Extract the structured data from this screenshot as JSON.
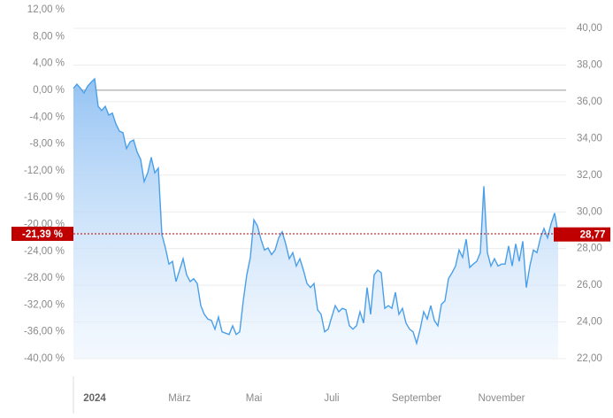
{
  "chart_data": {
    "type": "area",
    "series": [
      {
        "color": "#4a9fe8",
        "axis": "y",
        "values": [
          0.3,
          0.9,
          0.3,
          -0.4,
          0.6,
          1.2,
          1.7,
          -2.4,
          -3.0,
          -2.4,
          -3.7,
          -3.4,
          -5.0,
          -6.1,
          -6.3,
          -8.7,
          -7.7,
          -7.4,
          -9.2,
          -10.3,
          -13.6,
          -12.3,
          -10.0,
          -12.3,
          -11.6,
          -21.5,
          -23.5,
          -25.9,
          -25.5,
          -28.5,
          -26.8,
          -25.1,
          -27.5,
          -28.5,
          -28.1,
          -28.8,
          -32.1,
          -33.4,
          -34.1,
          -34.3,
          -35.6,
          -33.8,
          -36.0,
          -36.2,
          -36.4,
          -35.1,
          -36.4,
          -36.0,
          -31.4,
          -27.5,
          -24.9,
          -19.3,
          -20.2,
          -22.2,
          -23.8,
          -23.5,
          -24.5,
          -23.8,
          -22.0,
          -21.1,
          -22.9,
          -25.1,
          -24.2,
          -26.2,
          -25.1,
          -26.8,
          -28.8,
          -29.4,
          -28.8,
          -32.7,
          -33.4,
          -36.0,
          -35.6,
          -33.8,
          -32.1,
          -33.0,
          -32.5,
          -32.7,
          -35.1,
          -35.6,
          -35.1,
          -33.0,
          -34.7,
          -29.4,
          -33.4,
          -27.5,
          -26.8,
          -27.2,
          -32.5,
          -32.1,
          -32.5,
          -30.1,
          -33.4,
          -32.5,
          -34.7,
          -35.6,
          -36.0,
          -37.7,
          -35.6,
          -33.0,
          -34.1,
          -32.1,
          -34.3,
          -35.1,
          -31.9,
          -31.4,
          -28.1,
          -27.2,
          -26.2,
          -23.8,
          -24.9,
          -22.2,
          -26.4,
          -25.9,
          -25.5,
          -24.2,
          -14.3,
          -24.2,
          -26.2,
          -25.1,
          -26.2,
          -25.9,
          -25.9,
          -23.2,
          -26.2,
          -22.9,
          -25.5,
          -22.5,
          -29.4,
          -26.2,
          -23.8,
          -24.2,
          -22.0,
          -20.6,
          -22.0,
          -19.9,
          -18.3,
          -21.4
        ]
      }
    ],
    "xlim": [
      0,
      136
    ],
    "xticks": [
      {
        "value": 6,
        "label": "2024"
      },
      {
        "value": 30,
        "label": "März"
      },
      {
        "value": 51,
        "label": "Mai"
      },
      {
        "value": 73,
        "label": "Juli"
      },
      {
        "value": 97,
        "label": "September"
      },
      {
        "value": 121,
        "label": "November"
      }
    ],
    "ylim": [
      -40,
      12
    ],
    "yticks": [
      {
        "value": 12,
        "label": "12,00 %"
      },
      {
        "value": 8,
        "label": "8,00 %"
      },
      {
        "value": 4,
        "label": "4,00 %"
      },
      {
        "value": 0,
        "label": "0,00 %"
      },
      {
        "value": -4,
        "label": "-4,00 %"
      },
      {
        "value": -8,
        "label": "-8,00 %"
      },
      {
        "value": -12,
        "label": "-12,00 %"
      },
      {
        "value": -16,
        "label": "-16,00 %"
      },
      {
        "value": -20,
        "label": "-20,00 %"
      },
      {
        "value": -24,
        "label": "-24,00 %"
      },
      {
        "value": -28,
        "label": "-28,00 %"
      },
      {
        "value": -32,
        "label": "-32,00 %"
      },
      {
        "value": -36,
        "label": "-36,00 %"
      },
      {
        "value": -40,
        "label": "-40,00 %"
      }
    ],
    "y2lim": [
      22,
      40
    ],
    "y2ticks": [
      {
        "value": 40,
        "label": "40,00"
      },
      {
        "value": 38,
        "label": "38,00"
      },
      {
        "value": 36,
        "label": "36,00"
      },
      {
        "value": 34,
        "label": "34,00"
      },
      {
        "value": 32,
        "label": "32,00"
      },
      {
        "value": 30,
        "label": "30,00"
      },
      {
        "value": 28,
        "label": "28,00"
      },
      {
        "value": 26,
        "label": "26,00"
      },
      {
        "value": 24,
        "label": "24,00"
      },
      {
        "value": 22,
        "label": "22,00"
      }
    ],
    "grid": true,
    "baseline": 0,
    "last_value": {
      "value": -21.39,
      "label": "-21,39 %"
    },
    "last_price": {
      "value": 28.77,
      "label": "28,77"
    },
    "marker_color": "#c00000"
  }
}
